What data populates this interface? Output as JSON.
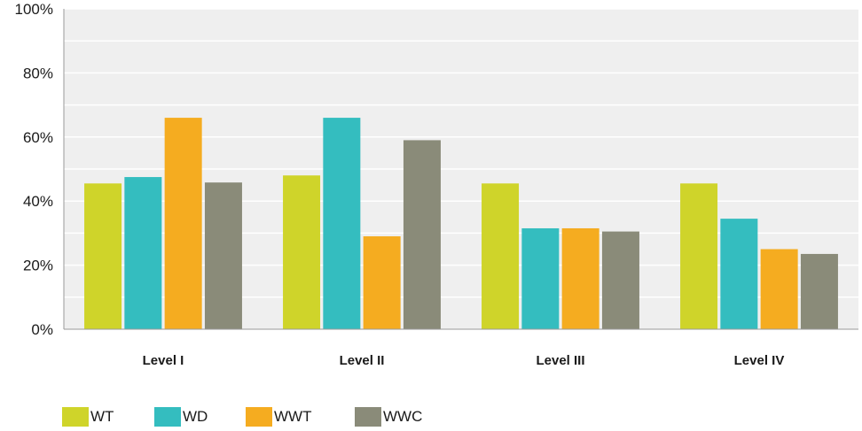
{
  "chart_data": {
    "type": "bar",
    "title": "",
    "xlabel": "",
    "ylabel": "",
    "categories": [
      "Level I",
      "Level II",
      "Level III",
      "Level IV"
    ],
    "ylim": [
      0,
      100
    ],
    "y_ticks": [
      "0%",
      "20%",
      "40%",
      "60%",
      "80%",
      "100%"
    ],
    "y_tick_values": [
      0,
      20,
      40,
      60,
      80,
      100
    ],
    "grid": true,
    "legend_position": "bottom-left",
    "plot_background": "#efefef",
    "gridline_color": "#ffffff",
    "series": [
      {
        "name": "WT",
        "color": "#cfd42a",
        "values": [
          45.5,
          48.0,
          45.5,
          45.5
        ]
      },
      {
        "name": "WD",
        "color": "#34bdbf",
        "values": [
          47.5,
          66.0,
          31.5,
          34.5
        ]
      },
      {
        "name": "WWT",
        "color": "#f5ac20",
        "values": [
          66.0,
          29.0,
          31.5,
          25.0
        ]
      },
      {
        "name": "WWC",
        "color": "#8a8b79",
        "values": [
          45.8,
          59.0,
          30.5,
          23.5
        ]
      }
    ]
  }
}
